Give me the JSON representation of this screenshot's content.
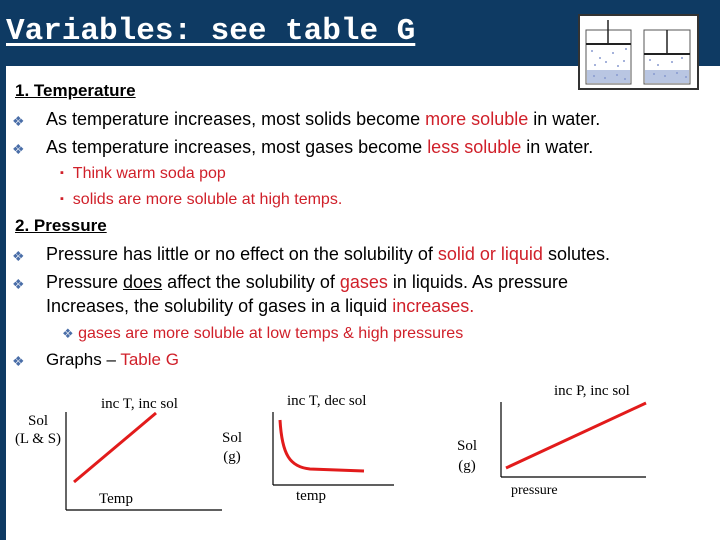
{
  "slide": {
    "title": "Variables: see table G",
    "section1": {
      "heading": "1. Temperature",
      "bullet1": {
        "pre": "As temperature increases, most solids become ",
        "hl": "more soluble",
        "post": " in water."
      },
      "bullet2": {
        "pre": "As temperature increases, most gases become ",
        "hl": "less soluble",
        "post": " in water."
      },
      "sub1": "Think warm soda pop",
      "sub2": "solids are more soluble at high temps."
    },
    "section2": {
      "heading": "2. Pressure",
      "bullet1": {
        "pre": "Pressure has little or no effect on the solubility of ",
        "hl": "solid or liquid",
        "post": " solutes."
      },
      "bullet2": {
        "l1_pre": "Pressure ",
        "l1_ul": "does",
        "l1_mid": " affect the solubility of ",
        "l1_hl": "gases",
        "l1_post": " in liquids. As pressure",
        "l2_pre": "Increases, the solubility of gases in a liquid ",
        "l2_hl": "increases."
      },
      "sub1": "gases are more soluble at low temps & high pressures",
      "bullet3": {
        "pre": "Graphs – ",
        "hl": "Table G"
      }
    },
    "graphs": [
      {
        "title": "inc T,  inc sol",
        "ylabel1": "Sol",
        "ylabel2": "(L & S)",
        "xlabel": "Temp"
      },
      {
        "title": "inc T,   dec sol",
        "ylabel1": "Sol",
        "ylabel2": "(g)",
        "xlabel": "temp"
      },
      {
        "title": "inc P,  inc sol",
        "ylabel1": "Sol",
        "ylabel2": "(g)",
        "xlabel": "pressure"
      }
    ],
    "colors": {
      "header_bg": "#0e3a63",
      "accent_red": "#d0202a",
      "bullet_blue": "#4a6ea8"
    }
  }
}
